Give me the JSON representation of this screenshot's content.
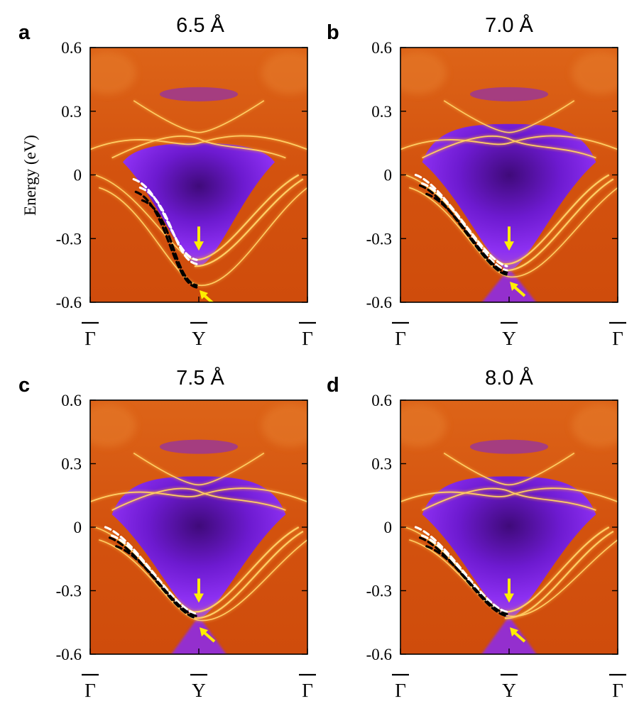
{
  "figure": {
    "ylabel": "Energy (eV)",
    "colors": {
      "background": "#d4540f",
      "gap": "#8a2bf0",
      "gap_center": "#4a0a8a",
      "band": "#ffcf66",
      "arrow": "#ffee00",
      "trace_white": "#ffffff",
      "trace_black": "#000000"
    }
  },
  "chart_data": [
    {
      "type": "heatmap",
      "panel_label": "a",
      "title": "6.5 Å",
      "ylabel": "Energy (eV)",
      "ylim": [
        -0.6,
        0.6
      ],
      "yticks": [
        "0.6",
        "0.3",
        "0",
        "-0.3",
        "-0.6"
      ],
      "xticks": [
        "Γ",
        "Y",
        "Γ"
      ],
      "xticks_overbar": true,
      "band_min_energy": -0.4,
      "lower_band_min_energy": -0.52,
      "white_trace_end_energy": -0.4,
      "black_trace_end_energy": -0.53,
      "arrow_down_energy": -0.33,
      "arrow_diag_energy": -0.57
    },
    {
      "type": "heatmap",
      "panel_label": "b",
      "title": "7.0 Å",
      "ylabel": "",
      "ylim": [
        -0.6,
        0.6
      ],
      "yticks": [
        "0.6",
        "0.3",
        "0",
        "-0.3",
        "-0.6"
      ],
      "xticks": [
        "Γ",
        "Y",
        "Γ"
      ],
      "xticks_overbar": true,
      "band_min_energy": -0.42,
      "lower_band_min_energy": -0.48,
      "white_trace_end_energy": -0.43,
      "black_trace_end_energy": -0.47,
      "arrow_down_energy": -0.33,
      "arrow_diag_energy": -0.53
    },
    {
      "type": "heatmap",
      "panel_label": "c",
      "title": "7.5 Å",
      "ylabel": "",
      "ylim": [
        -0.6,
        0.6
      ],
      "yticks": [
        "0.6",
        "0.3",
        "0",
        "-0.3",
        "-0.6"
      ],
      "xticks": [
        "Γ",
        "Y",
        "Γ"
      ],
      "xticks_overbar": true,
      "band_min_energy": -0.4,
      "lower_band_min_energy": -0.44,
      "white_trace_end_energy": -0.41,
      "black_trace_end_energy": -0.43,
      "arrow_down_energy": -0.33,
      "arrow_diag_energy": -0.5
    },
    {
      "type": "heatmap",
      "panel_label": "d",
      "title": "8.0 Å",
      "ylabel": "",
      "ylim": [
        -0.6,
        0.6
      ],
      "yticks": [
        "0.6",
        "0.3",
        "0",
        "-0.3",
        "-0.6"
      ],
      "xticks": [
        "Γ",
        "Y",
        "Γ"
      ],
      "xticks_overbar": true,
      "band_min_energy": -0.4,
      "lower_band_min_energy": -0.42,
      "white_trace_end_energy": -0.4,
      "black_trace_end_energy": -0.42,
      "arrow_down_energy": -0.33,
      "arrow_diag_energy": -0.5
    }
  ]
}
